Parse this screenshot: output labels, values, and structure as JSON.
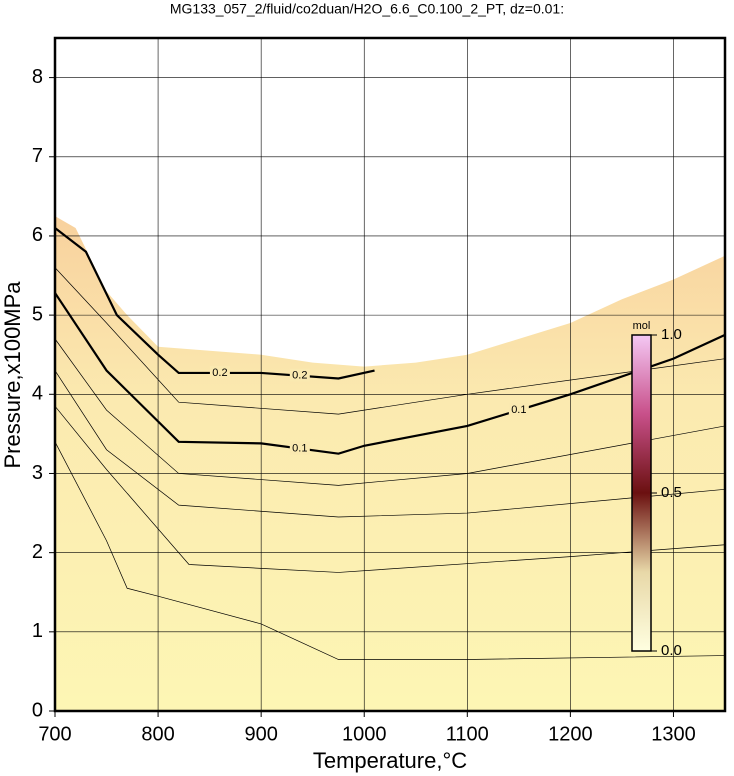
{
  "chart_data": {
    "type": "contour",
    "title": "MG133_057_2/fluid/co2duan/H2O_6.6_C0.100_2_PT, dz=0.01:",
    "x_label": "Temperature,°C",
    "y_label": "Pressure,x100MPa",
    "xlim": [
      700,
      1350
    ],
    "ylim": [
      0,
      8.5
    ],
    "xticks": [
      700,
      800,
      900,
      1000,
      1100,
      1200,
      1300
    ],
    "yticks": [
      0,
      1,
      2,
      3,
      4,
      5,
      6,
      7,
      8
    ],
    "grid": true,
    "region": {
      "x": [
        700,
        720,
        750,
        770,
        800,
        850,
        900,
        950,
        1000,
        1050,
        1100,
        1150,
        1200,
        1250,
        1300,
        1350
      ],
      "values": [
        6.25,
        6.1,
        5.3,
        5.0,
        4.6,
        4.55,
        4.5,
        4.4,
        4.35,
        4.4,
        4.5,
        4.7,
        4.9,
        5.2,
        5.45,
        5.75
      ]
    },
    "contours": [
      {
        "x": [
          700,
          750,
          770,
          800,
          900,
          975,
          1100,
          1350
        ],
        "values": [
          3.4,
          2.15,
          1.55,
          1.45,
          1.1,
          0.65,
          0.65,
          0.7
        ]
      },
      {
        "x": [
          700,
          750,
          830,
          975,
          1200,
          1350
        ],
        "values": [
          3.85,
          3.05,
          1.85,
          1.75,
          1.95,
          2.1
        ]
      },
      {
        "x": [
          700,
          750,
          820,
          975,
          1100,
          1350
        ],
        "values": [
          4.3,
          3.3,
          2.6,
          2.45,
          2.5,
          2.8
        ]
      },
      {
        "x": [
          700,
          750,
          820,
          975,
          1100,
          1350
        ],
        "values": [
          4.7,
          3.8,
          3.0,
          2.85,
          3.0,
          3.6
        ]
      },
      {
        "level": 0.1,
        "x": [
          700,
          750,
          820,
          900,
          975,
          1000,
          1100,
          1200,
          1300,
          1350
        ],
        "values": [
          5.28,
          4.3,
          3.4,
          3.38,
          3.25,
          3.35,
          3.6,
          4.0,
          4.45,
          4.75
        ]
      },
      {
        "x": [
          700,
          750,
          820,
          975,
          1100,
          1350
        ],
        "values": [
          5.6,
          4.9,
          3.9,
          3.75,
          4.0,
          4.45
        ]
      },
      {
        "level": 0.2,
        "x": [
          700,
          730,
          760,
          800,
          820,
          900,
          975,
          1010
        ],
        "values": [
          6.1,
          5.8,
          5.0,
          4.5,
          4.27,
          4.27,
          4.2,
          4.3
        ]
      }
    ],
    "colorbar": {
      "label": "mol",
      "lim": [
        0,
        1
      ],
      "ticks": [
        {
          "value": 0,
          "label": "0.0"
        },
        0.5,
        {
          "value": 1,
          "label": "1.0"
        }
      ]
    }
  }
}
